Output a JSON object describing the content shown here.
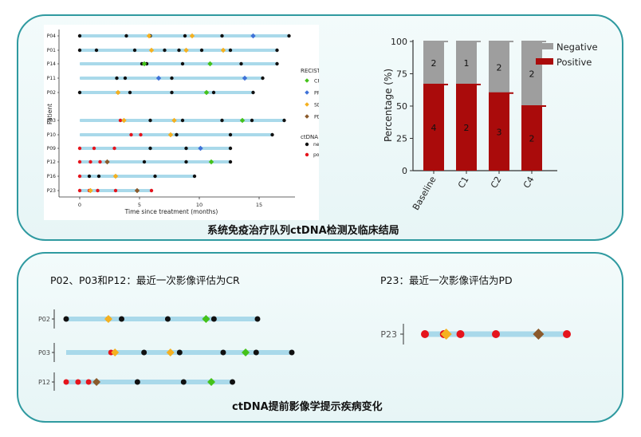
{
  "top_caption": "系统免疫治疗队列ctDNA检测及临床结局",
  "bottom_caption": "ctDNA提前影像学提示疾病变化",
  "bottom_left_heading": "P02、P03和P12：最近一次影像评估为CR",
  "bottom_right_heading": "P23：最近一次影像评估为PD",
  "colors": {
    "bar": "#a9d9ea",
    "CR": "#44c21a",
    "PR": "#3f72d8",
    "SD": "#f5b120",
    "PD": "#8b5a2b",
    "negative": "#111111",
    "positive": "#e5141c",
    "negative_stack": "#9e9e9e",
    "positive_stack": "#aa0b0b"
  },
  "chart_data": [
    {
      "type": "swimmer",
      "xlabel": "Time since treatment (months)",
      "ylabel": "Patient",
      "xlim": [
        0,
        18
      ],
      "xticks": [
        0,
        5,
        10,
        15
      ],
      "legend": {
        "recist_title": "RECIST",
        "recist_items": [
          "CR",
          "PR",
          "SD",
          "PD"
        ],
        "ctdna_title": "ctDNA",
        "ctdna_items": [
          "negative",
          "positive"
        ]
      },
      "patients": [
        {
          "id": "P04",
          "end": 17.5,
          "ctdna": [
            {
              "t": 0,
              "s": "neg"
            },
            {
              "t": 3.9,
              "s": "neg"
            },
            {
              "t": 5.9,
              "s": "neg"
            },
            {
              "t": 8.8,
              "s": "neg"
            },
            {
              "t": 11.9,
              "s": "neg"
            },
            {
              "t": 17.5,
              "s": "neg"
            }
          ],
          "recist": [
            {
              "t": 5.8,
              "r": "SD"
            },
            {
              "t": 9.4,
              "r": "SD"
            },
            {
              "t": 14.5,
              "r": "PR"
            }
          ]
        },
        {
          "id": "P01",
          "end": 16.5,
          "ctdna": [
            {
              "t": 0,
              "s": "neg"
            },
            {
              "t": 1.4,
              "s": "neg"
            },
            {
              "t": 4.6,
              "s": "neg"
            },
            {
              "t": 7.1,
              "s": "neg"
            },
            {
              "t": 8.3,
              "s": "neg"
            },
            {
              "t": 10.2,
              "s": "neg"
            },
            {
              "t": 12.6,
              "s": "neg"
            },
            {
              "t": 16.5,
              "s": "neg"
            }
          ],
          "recist": [
            {
              "t": 6.0,
              "r": "SD"
            },
            {
              "t": 8.9,
              "r": "SD"
            },
            {
              "t": 12.0,
              "r": "SD"
            }
          ]
        },
        {
          "id": "P14",
          "end": 16.5,
          "ctdna": [
            {
              "t": 5.2,
              "s": "neg"
            },
            {
              "t": 5.6,
              "s": "neg"
            },
            {
              "t": 8.6,
              "s": "neg"
            },
            {
              "t": 13.5,
              "s": "neg"
            },
            {
              "t": 16.5,
              "s": "neg"
            }
          ],
          "recist": [
            {
              "t": 5.4,
              "r": "CR"
            },
            {
              "t": 10.9,
              "r": "CR"
            }
          ]
        },
        {
          "id": "P11",
          "end": 15.3,
          "ctdna": [
            {
              "t": 3.1,
              "s": "neg"
            },
            {
              "t": 3.8,
              "s": "neg"
            },
            {
              "t": 7.7,
              "s": "neg"
            },
            {
              "t": 15.3,
              "s": "neg"
            }
          ],
          "recist": [
            {
              "t": 6.6,
              "r": "PR"
            },
            {
              "t": 13.8,
              "r": "PR"
            }
          ]
        },
        {
          "id": "P02",
          "end": 14.5,
          "ctdna": [
            {
              "t": 0,
              "s": "neg"
            },
            {
              "t": 3.2,
              "s": "neg"
            },
            {
              "t": 4.2,
              "s": "neg"
            },
            {
              "t": 7.7,
              "s": "neg"
            },
            {
              "t": 11.2,
              "s": "neg"
            },
            {
              "t": 14.5,
              "s": "neg"
            }
          ],
          "recist": [
            {
              "t": 3.2,
              "r": "SD"
            },
            {
              "t": 10.6,
              "r": "CR"
            }
          ]
        },
        {
          "id": "P03",
          "end": 17.1,
          "ctdna": [
            {
              "t": 3.4,
              "s": "pos"
            },
            {
              "t": 5.9,
              "s": "neg"
            },
            {
              "t": 8.6,
              "s": "neg"
            },
            {
              "t": 11.9,
              "s": "neg"
            },
            {
              "t": 14.4,
              "s": "neg"
            },
            {
              "t": 17.1,
              "s": "neg"
            }
          ],
          "recist": [
            {
              "t": 3.7,
              "r": "SD"
            },
            {
              "t": 7.9,
              "r": "SD"
            },
            {
              "t": 13.6,
              "r": "CR"
            }
          ]
        },
        {
          "id": "P10",
          "end": 16.1,
          "ctdna": [
            {
              "t": 4.3,
              "s": "pos"
            },
            {
              "t": 5.1,
              "s": "pos"
            },
            {
              "t": 8.1,
              "s": "neg"
            },
            {
              "t": 12.6,
              "s": "neg"
            },
            {
              "t": 16.1,
              "s": "neg"
            }
          ],
          "recist": [
            {
              "t": 7.6,
              "r": "SD"
            }
          ]
        },
        {
          "id": "P09",
          "end": 12.6,
          "ctdna": [
            {
              "t": 0,
              "s": "pos"
            },
            {
              "t": 1.2,
              "s": "pos"
            },
            {
              "t": 2.9,
              "s": "pos"
            },
            {
              "t": 5.9,
              "s": "neg"
            },
            {
              "t": 8.9,
              "s": "neg"
            },
            {
              "t": 12.6,
              "s": "neg"
            }
          ],
          "recist": [
            {
              "t": 10.1,
              "r": "PR"
            }
          ]
        },
        {
          "id": "P12",
          "end": 12.6,
          "ctdna": [
            {
              "t": 0,
              "s": "pos"
            },
            {
              "t": 0.9,
              "s": "pos"
            },
            {
              "t": 1.7,
              "s": "pos"
            },
            {
              "t": 5.4,
              "s": "neg"
            },
            {
              "t": 8.9,
              "s": "neg"
            },
            {
              "t": 12.6,
              "s": "neg"
            }
          ],
          "recist": [
            {
              "t": 2.3,
              "r": "PD"
            },
            {
              "t": 11.0,
              "r": "CR"
            }
          ]
        },
        {
          "id": "P16",
          "end": 9.6,
          "ctdna": [
            {
              "t": 0,
              "s": "pos"
            },
            {
              "t": 0.8,
              "s": "neg"
            },
            {
              "t": 1.6,
              "s": "neg"
            },
            {
              "t": 3.0,
              "s": "neg"
            },
            {
              "t": 6.3,
              "s": "neg"
            },
            {
              "t": 9.6,
              "s": "neg"
            }
          ],
          "recist": [
            {
              "t": 3.0,
              "r": "SD"
            }
          ]
        },
        {
          "id": "P23",
          "end": 6.0,
          "ctdna": [
            {
              "t": 0,
              "s": "pos"
            },
            {
              "t": 0.8,
              "s": "pos"
            },
            {
              "t": 1.5,
              "s": "pos"
            },
            {
              "t": 3.0,
              "s": "pos"
            },
            {
              "t": 6.0,
              "s": "pos"
            }
          ],
          "recist": [
            {
              "t": 0.9,
              "r": "SD"
            },
            {
              "t": 4.8,
              "r": "PD"
            }
          ]
        }
      ]
    },
    {
      "type": "bar",
      "stacked": true,
      "categories": [
        "Baseline",
        "C1",
        "C2",
        "C4"
      ],
      "ylabel": "Percentage (%)",
      "ylim": [
        0,
        100
      ],
      "yticks": [
        0,
        25,
        50,
        75,
        100
      ],
      "legend_position": "top-right",
      "series": [
        {
          "name": "Positive",
          "values": [
            66.7,
            66.7,
            60.0,
            50.0
          ],
          "labels": [
            "4",
            "2",
            "3",
            "2"
          ]
        },
        {
          "name": "Negative",
          "values": [
            33.3,
            33.3,
            40.0,
            50.0
          ],
          "labels": [
            "2",
            "1",
            "2",
            "2"
          ]
        }
      ]
    }
  ]
}
